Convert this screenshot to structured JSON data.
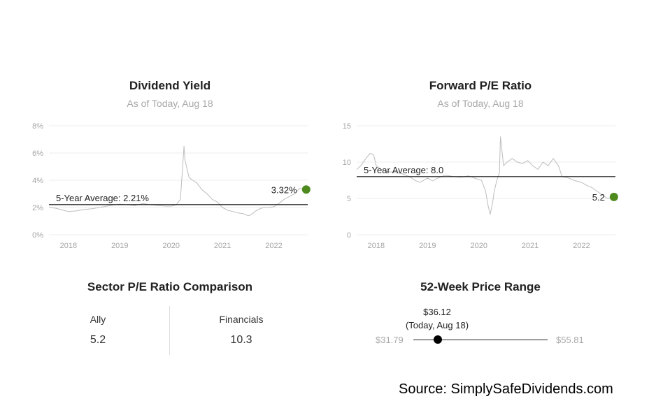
{
  "chart_data": [
    {
      "type": "line",
      "title": "Dividend Yield",
      "subtitle": "As of Today, Aug 18",
      "x_ticks": [
        "2018",
        "2019",
        "2020",
        "2021",
        "2022"
      ],
      "y_ticks": [
        "0%",
        "2%",
        "4%",
        "6%",
        "8%"
      ],
      "ylim": [
        0,
        8
      ],
      "xlim": [
        2017.62,
        2022.66
      ],
      "grid": true,
      "average": {
        "label": "5-Year Average: 2.21%",
        "value": 2.21
      },
      "current": {
        "label": "3.32%",
        "x": 2022.63,
        "y": 3.32
      },
      "x": [
        2017.62,
        2017.75,
        2017.9,
        2018.0,
        2018.15,
        2018.3,
        2018.45,
        2018.6,
        2018.75,
        2018.9,
        2019.0,
        2019.15,
        2019.3,
        2019.45,
        2019.6,
        2019.75,
        2019.9,
        2020.0,
        2020.1,
        2020.18,
        2020.22,
        2020.25,
        2020.27,
        2020.3,
        2020.35,
        2020.42,
        2020.5,
        2020.6,
        2020.7,
        2020.8,
        2020.9,
        2021.0,
        2021.1,
        2021.2,
        2021.3,
        2021.4,
        2021.5,
        2021.55,
        2021.65,
        2021.75,
        2021.85,
        2022.0,
        2022.1,
        2022.2,
        2022.3,
        2022.4,
        2022.5,
        2022.63
      ],
      "values": [
        2.0,
        1.95,
        1.8,
        1.7,
        1.75,
        1.85,
        1.9,
        2.0,
        2.1,
        2.2,
        2.25,
        2.2,
        2.15,
        2.3,
        2.2,
        2.15,
        2.1,
        2.1,
        2.2,
        2.6,
        4.8,
        6.5,
        5.5,
        5.0,
        4.2,
        4.0,
        3.8,
        3.3,
        3.0,
        2.6,
        2.4,
        2.0,
        1.8,
        1.7,
        1.6,
        1.55,
        1.4,
        1.45,
        1.75,
        1.95,
        2.0,
        2.05,
        2.3,
        2.6,
        2.8,
        3.0,
        3.4,
        3.32
      ]
    },
    {
      "type": "line",
      "title": "Forward P/E Ratio",
      "subtitle": "As of Today, Aug 18",
      "x_ticks": [
        "2018",
        "2019",
        "2020",
        "2021",
        "2022"
      ],
      "y_ticks": [
        "0",
        "5",
        "10",
        "15"
      ],
      "ylim": [
        0,
        15
      ],
      "xlim": [
        2017.62,
        2022.66
      ],
      "grid": true,
      "average": {
        "label": "5-Year Average: 8.0",
        "value": 8.0
      },
      "current": {
        "label": "5.2",
        "x": 2022.63,
        "y": 5.2
      },
      "x": [
        2017.62,
        2017.7,
        2017.8,
        2017.88,
        2017.95,
        2018.0,
        2018.1,
        2018.2,
        2018.35,
        2018.5,
        2018.65,
        2018.75,
        2018.85,
        2019.0,
        2019.1,
        2019.2,
        2019.35,
        2019.5,
        2019.65,
        2019.8,
        2019.95,
        2020.05,
        2020.13,
        2020.18,
        2020.22,
        2020.27,
        2020.3,
        2020.35,
        2020.4,
        2020.42,
        2020.48,
        2020.55,
        2020.65,
        2020.75,
        2020.85,
        2020.95,
        2021.05,
        2021.15,
        2021.25,
        2021.35,
        2021.45,
        2021.55,
        2021.62,
        2021.75,
        2021.85,
        2022.0,
        2022.1,
        2022.2,
        2022.3,
        2022.4,
        2022.5,
        2022.63
      ],
      "values": [
        9.0,
        9.5,
        10.5,
        11.2,
        11.0,
        9.5,
        9.0,
        8.7,
        8.6,
        8.4,
        8.0,
        7.5,
        7.2,
        7.8,
        7.4,
        7.8,
        8.2,
        8.0,
        7.9,
        8.1,
        7.7,
        7.5,
        6.0,
        4.0,
        2.8,
        4.5,
        6.0,
        7.5,
        8.5,
        13.5,
        9.5,
        10.0,
        10.5,
        10.0,
        9.8,
        10.2,
        9.5,
        9.0,
        10.0,
        9.5,
        10.5,
        9.5,
        8.0,
        7.8,
        7.5,
        7.2,
        6.8,
        6.5,
        6.0,
        5.5,
        5.0,
        5.2
      ]
    }
  ],
  "sector": {
    "title": "Sector P/E Ratio Comparison",
    "left_name": "Ally",
    "left_value": "5.2",
    "right_name": "Financials",
    "right_value": "10.3"
  },
  "range": {
    "title": "52-Week Price Range",
    "current_price": "$36.12",
    "current_note": "(Today, Aug 18)",
    "low": "$31.79",
    "high": "$55.81",
    "low_num": 31.79,
    "high_num": 55.81,
    "current_num": 36.12
  },
  "source": "Source: SimplySafeDividends.com",
  "colors": {
    "line": "#bdbdbd",
    "average": "#111111",
    "current_dot": "#4f8a1f",
    "grid": "#eeeeee"
  }
}
